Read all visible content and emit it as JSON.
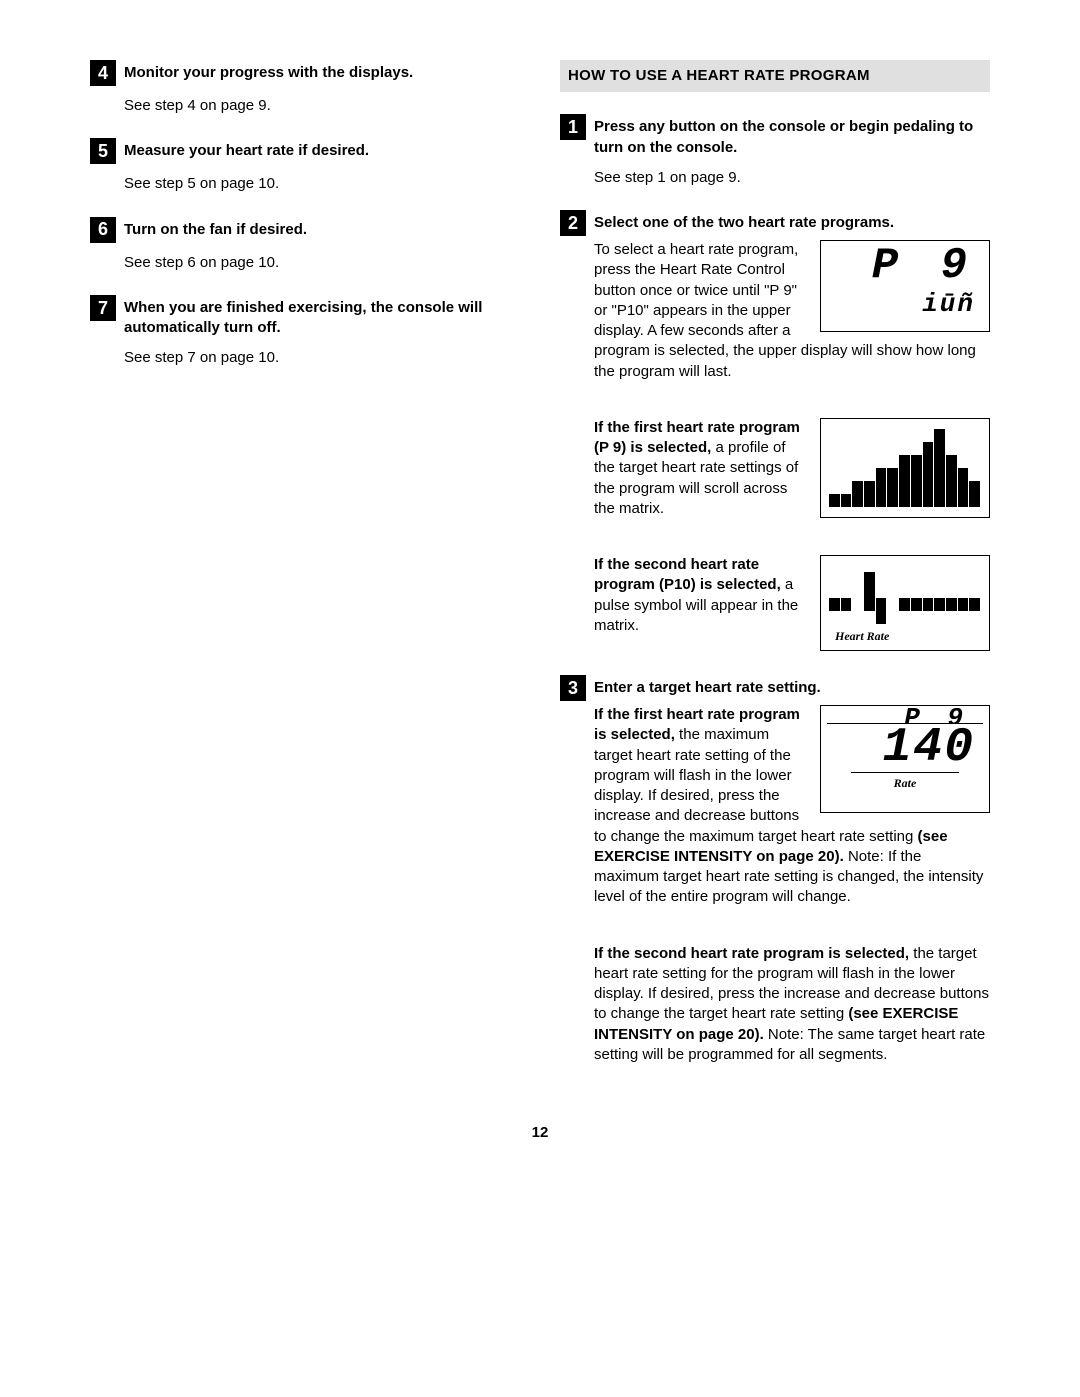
{
  "left": {
    "steps": [
      {
        "num": "4",
        "title": "Monitor your progress with the displays.",
        "body": "See step 4 on page 9."
      },
      {
        "num": "5",
        "title": "Measure your heart rate if desired.",
        "body": "See step 5 on page 10."
      },
      {
        "num": "6",
        "title": "Turn on the fan if desired.",
        "body": "See step 6 on page 10."
      },
      {
        "num": "7",
        "title": "When you are finished exercising, the console will automatically turn off.",
        "body": "See step 7 on page 10."
      }
    ]
  },
  "right": {
    "header": "HOW TO USE A HEART RATE PROGRAM",
    "step1": {
      "num": "1",
      "title": "Press any button on the console or begin pedaling to turn on the console.",
      "body": "See step 1 on page 9."
    },
    "step2": {
      "num": "2",
      "title": "Select one of the two heart rate programs.",
      "lcd1": {
        "line1": "P  9",
        "line2": "iūñ"
      },
      "para1": "To select a heart rate program, press the Heart Rate Control button once or twice until \"P 9\" or \"P10\" appears in the upper display. A few seconds after a program is selected, the upper display will show how long the program will last.",
      "p9_bold": "If the first heart rate program (P 9) is selected,",
      "p9_rest": " a profile of the target heart rate settings of the program will scroll across the matrix.",
      "matrix1_rows": [
        "0000000001000",
        "0000000011000",
        "0000001111100",
        "0000111111110",
        "0011111111111",
        "1111111111111"
      ],
      "p10_bold": "If the second heart rate program (P10) is selected,",
      "p10_rest": " a pulse symbol will appear in the matrix.",
      "matrix2_rows": [
        "0001000000000",
        "0001000000000",
        "1101101111111",
        "0000100000000"
      ],
      "matrix2_label": "Heart Rate"
    },
    "step3": {
      "num": "3",
      "title": "Enter a target heart rate setting.",
      "lcd2": {
        "top": "P  9",
        "main": "140",
        "label": "Rate"
      },
      "p1_bold": "If the first heart rate program is selected,",
      "p1_rest": " the maximum target heart rate setting of the program will flash in the lower display. If desired, press the increase and decrease buttons to change the maximum target heart rate setting ",
      "p1_bold2": "(see EXERCISE INTENSITY on page 20).",
      "p1_rest2": " Note: If the maximum target heart rate setting is changed, the intensity level of the entire program will change.",
      "p2_bold": "If the second heart rate program is selected,",
      "p2_rest": " the target heart rate setting for the program will flash in the lower display. If desired, press the increase and decrease buttons to change the target heart rate setting ",
      "p2_bold2": "(see EXERCISE INTENSITY on page 20).",
      "p2_rest2": " Note: The same target heart rate setting will be programmed for all segments."
    }
  },
  "pageNumber": "12"
}
